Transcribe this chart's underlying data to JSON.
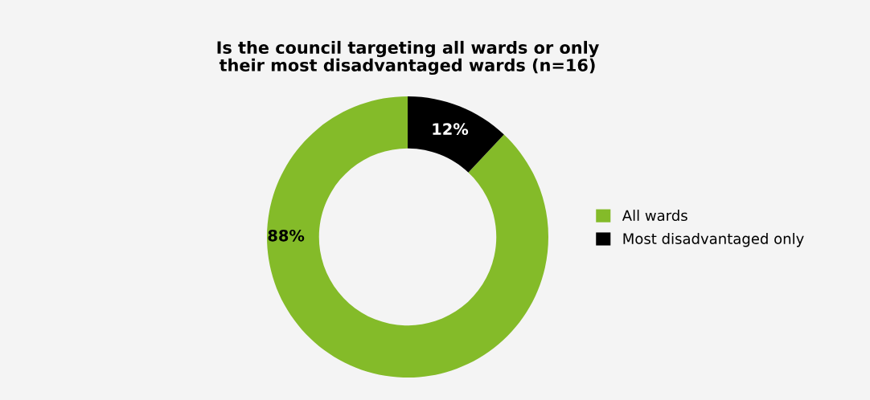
{
  "chart_data": {
    "type": "donut",
    "title": "Is the council targeting all wards or only\ntheir most disadvantaged wards (n=16)",
    "categories": [
      "All wards",
      "Most disadvantaged only"
    ],
    "values": [
      88,
      12
    ],
    "colors": [
      "#84bb29",
      "#000000"
    ],
    "value_labels": [
      "88%",
      "12%"
    ],
    "legend": "right"
  }
}
